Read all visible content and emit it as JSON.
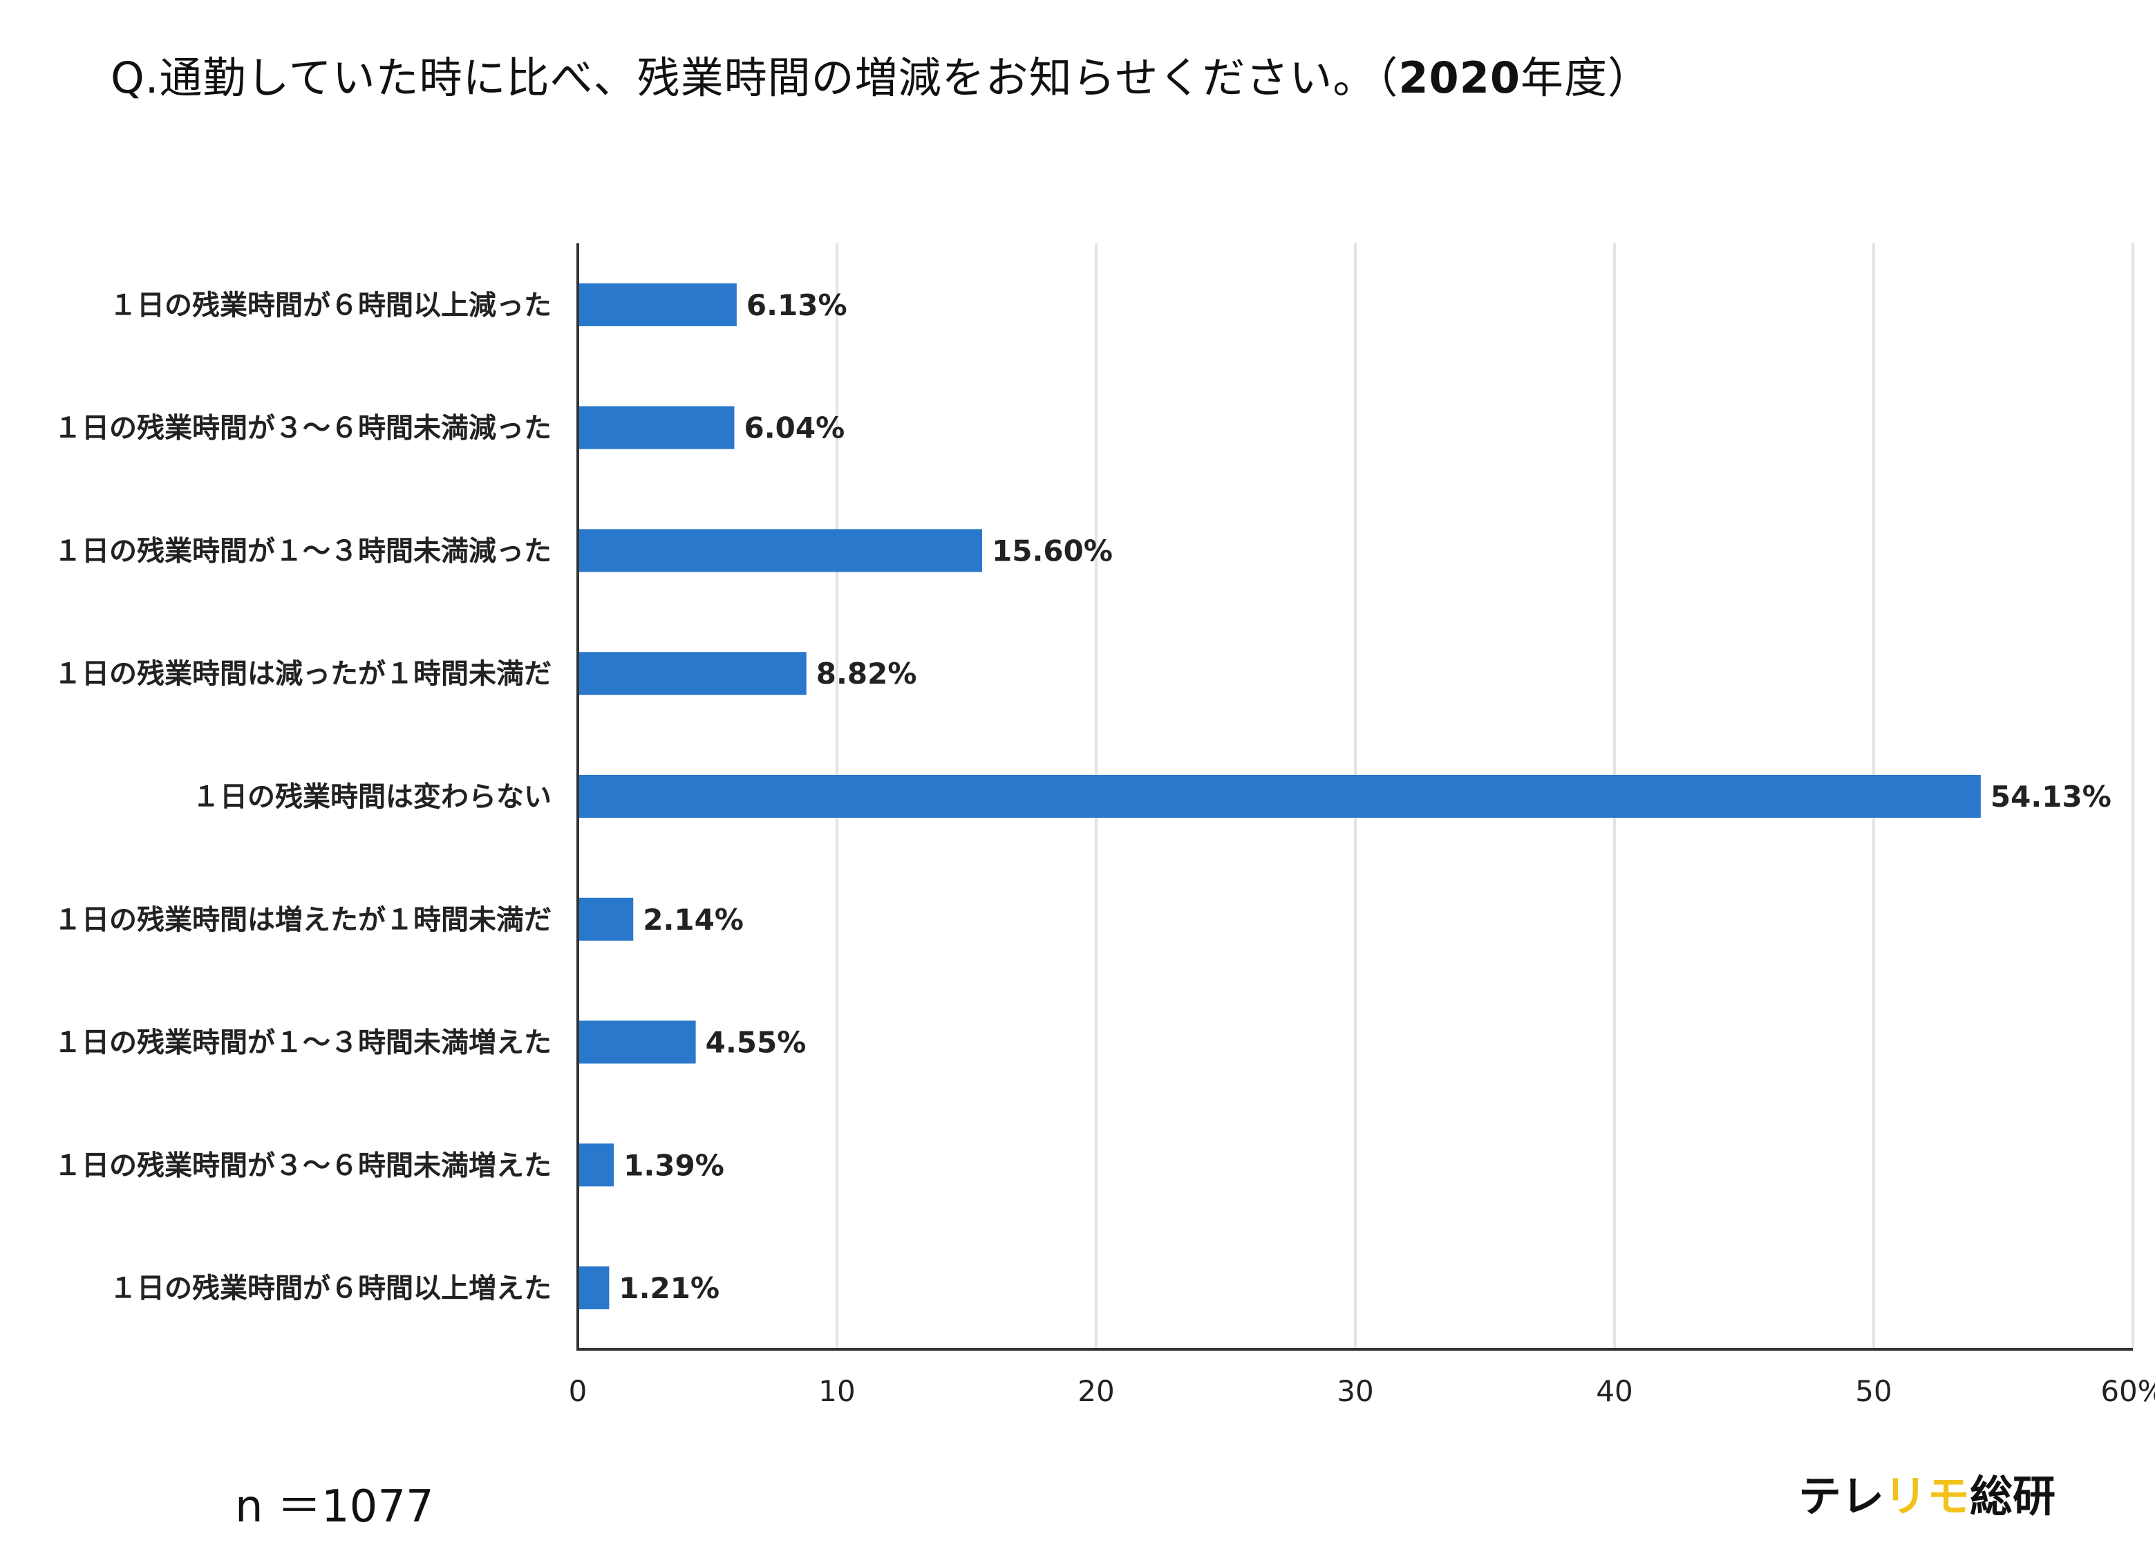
{
  "title": {
    "prefix": "Q.",
    "text": "通勤していた時に比べ、残業時間の増減をお知らせください。（",
    "year": "2020",
    "suffix": "年度）"
  },
  "sample_size": "n ＝1077",
  "brand": {
    "part1": "テレ",
    "part2": "リモ",
    "part3": "総研",
    "accent_color": "#f2c21b",
    "text_color": "#111111"
  },
  "colors": {
    "bar": "#2a78cc",
    "grid": "#e3e3e3",
    "axis": "#333333"
  },
  "chart_data": {
    "type": "bar",
    "orientation": "horizontal",
    "title": "通勤していた時に比べ、残業時間の増減をお知らせください。（2020年度）",
    "categories": [
      "１日の残業時間が６時間以上減った",
      "１日の残業時間が３〜６時間未満減った",
      "１日の残業時間が１〜３時間未満減った",
      "１日の残業時間は減ったが１時間未満だ",
      "１日の残業時間は変わらない",
      "１日の残業時間は増えたが１時間未満だ",
      "１日の残業時間が１〜３時間未満増えた",
      "１日の残業時間が３〜６時間未満増えた",
      "１日の残業時間が６時間以上増えた"
    ],
    "values": [
      6.13,
      6.04,
      15.6,
      8.82,
      54.13,
      2.14,
      4.55,
      1.39,
      1.21
    ],
    "value_labels": [
      "6.13%",
      "6.04%",
      "15.60%",
      "8.82%",
      "54.13%",
      "2.14%",
      "4.55%",
      "1.39%",
      "1.21%"
    ],
    "x_ticks": [
      "0",
      "10",
      "20",
      "30",
      "40",
      "50",
      "60%"
    ],
    "xlim": [
      0,
      60
    ],
    "xlabel": "",
    "ylabel": "",
    "grid": true
  }
}
